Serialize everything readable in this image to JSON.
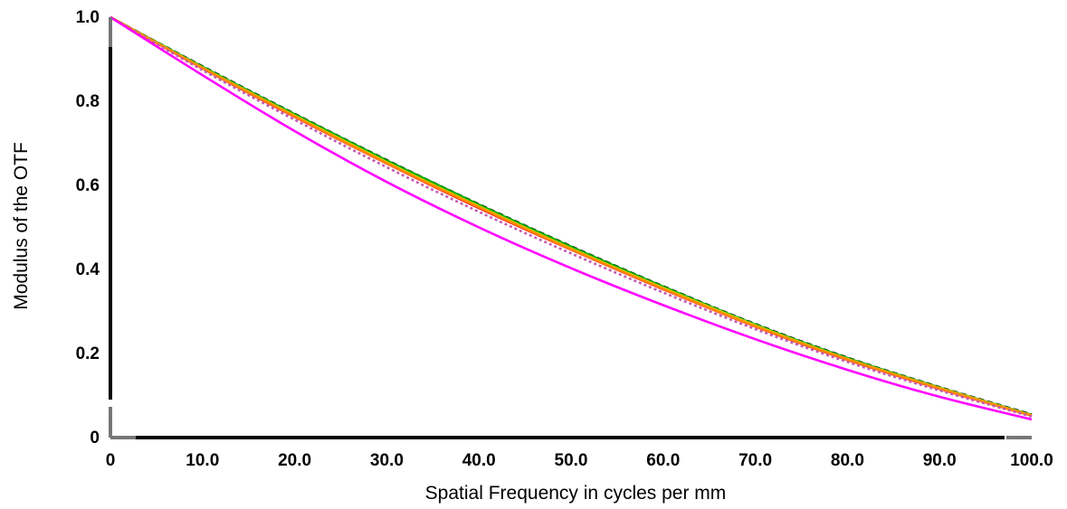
{
  "chart_data": {
    "type": "line",
    "title": "",
    "xlabel": "Spatial Frequency in cycles per mm",
    "ylabel": "Modulus of the OTF",
    "xlim": [
      0,
      100
    ],
    "ylim": [
      0,
      1.0
    ],
    "grid": false,
    "x_ticks": [
      "0",
      "10.0",
      "20.0",
      "30.0",
      "40.0",
      "50.0",
      "60.0",
      "70.0",
      "80.0",
      "90.0",
      "100.0"
    ],
    "y_ticks": [
      "0",
      "0.2",
      "0.4",
      "0.6",
      "0.8",
      "1.0"
    ],
    "x": [
      0,
      10,
      20,
      30,
      40,
      50,
      60,
      70,
      80,
      90,
      100
    ],
    "series": [
      {
        "color": "#000000",
        "dash": "6,4",
        "values": [
          1.0,
          0.883,
          0.77,
          0.66,
          0.555,
          0.455,
          0.36,
          0.27,
          0.19,
          0.12,
          0.055
        ]
      },
      {
        "color": "#00aa00",
        "dash": "",
        "values": [
          1.0,
          0.882,
          0.769,
          0.659,
          0.554,
          0.454,
          0.359,
          0.269,
          0.189,
          0.119,
          0.054
        ]
      },
      {
        "color": "#d4d400",
        "dash": "",
        "values": [
          1.0,
          0.88,
          0.766,
          0.655,
          0.55,
          0.45,
          0.356,
          0.267,
          0.187,
          0.118,
          0.053
        ]
      },
      {
        "color": "#ff0000",
        "dash": "",
        "values": [
          1.0,
          0.878,
          0.763,
          0.652,
          0.546,
          0.447,
          0.353,
          0.264,
          0.185,
          0.116,
          0.052
        ]
      },
      {
        "color": "#ff8c00",
        "dash": "",
        "values": [
          1.0,
          0.879,
          0.764,
          0.653,
          0.548,
          0.448,
          0.354,
          0.265,
          0.186,
          0.117,
          0.052
        ]
      },
      {
        "color": "#c45ab0",
        "dash": "3,3",
        "values": [
          1.0,
          0.874,
          0.756,
          0.643,
          0.537,
          0.438,
          0.345,
          0.258,
          0.18,
          0.112,
          0.05
        ]
      },
      {
        "color": "#ff00ff",
        "dash": "",
        "values": [
          1.0,
          0.862,
          0.729,
          0.608,
          0.5,
          0.403,
          0.315,
          0.234,
          0.161,
          0.097,
          0.043
        ]
      }
    ]
  }
}
